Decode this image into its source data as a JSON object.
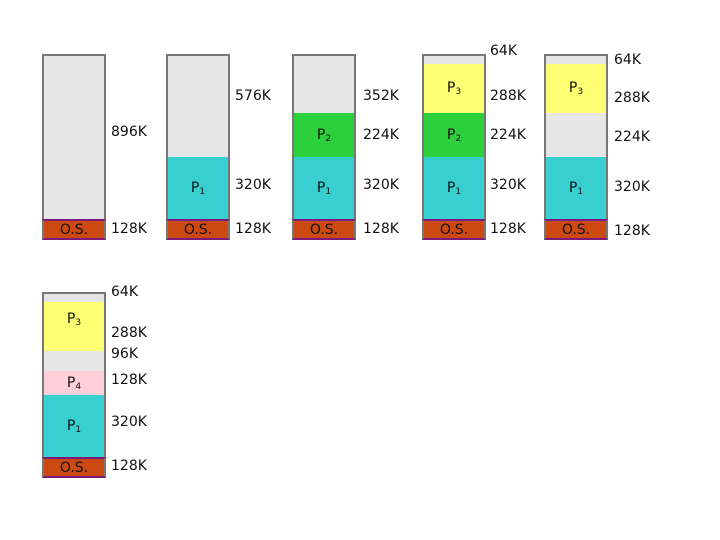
{
  "labels": {
    "os": "O.S.",
    "p1": "P",
    "p2": "P",
    "p3": "P",
    "p4": "P",
    "s1": "1",
    "s2": "2",
    "s3": "3",
    "s4": "4"
  },
  "col1": {
    "free": "896K",
    "os": "128K"
  },
  "col2": {
    "free": "576K",
    "p1": "320K",
    "os": "128K"
  },
  "col3": {
    "free": "352K",
    "p2": "224K",
    "p1": "320K",
    "os": "128K"
  },
  "col4": {
    "top": "64K",
    "p3": "288K",
    "p2": "224K",
    "p1": "320K",
    "os": "128K"
  },
  "col5": {
    "top": "64K",
    "p3": "288K",
    "free": "224K",
    "p1": "320K",
    "os": "128K"
  },
  "col6": {
    "top": "64K",
    "p3": "288K",
    "gap": "96K",
    "p4": "128K",
    "p1": "320K",
    "os": "128K"
  },
  "colors": {
    "os": "#cc4a12",
    "p1": "#37cfd0",
    "p2": "#2bd03b",
    "p3": "#ffff73",
    "p4": "#ffd0d8",
    "free": "#e6e6e6"
  }
}
